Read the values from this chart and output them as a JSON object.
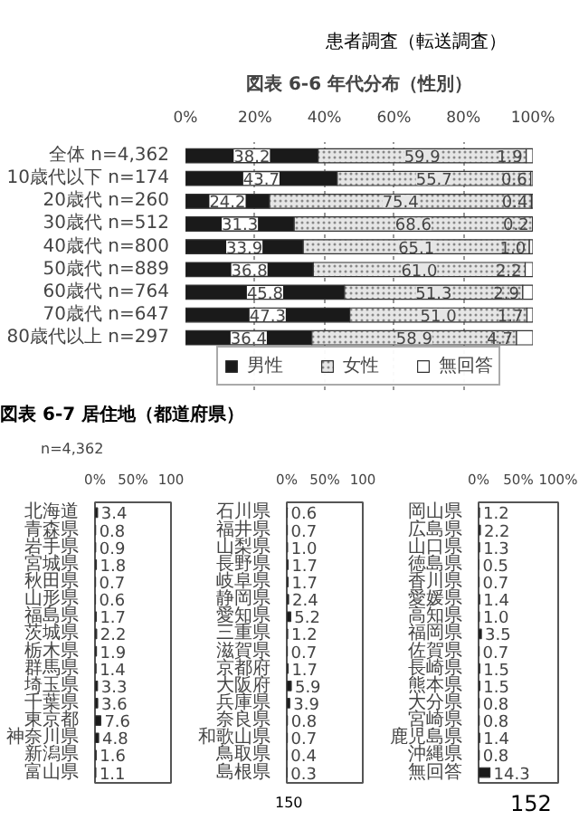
{
  "chart_data": [
    {
      "type": "bar",
      "orientation": "horizontal",
      "stacked": true,
      "title": "図表 6-6 年代分布（性別）",
      "annotations": [
        "患者調査（転送調査）"
      ],
      "categories": [
        "全体 n=4,362",
        "10歳代以下 n=174",
        "20歳代 n=260",
        "30歳代 n=512",
        "40歳代 n=800",
        "50歳代 n=889",
        "60歳代 n=764",
        "70歳代 n=647",
        "80歳代以上 n=297"
      ],
      "series": [
        {
          "name": "男性",
          "color": "#1a1a1a",
          "values": [
            38.2,
            43.7,
            24.2,
            31.3,
            33.9,
            36.8,
            45.8,
            47.3,
            36.4
          ],
          "value_labels": [
            "38.2",
            "43.7",
            "24.2",
            "31.3",
            "33.9",
            "36.8",
            "45.8",
            "47.3",
            "36.4"
          ]
        },
        {
          "name": "女性",
          "color": "#e6e6e6",
          "values": [
            59.9,
            55.7,
            75.4,
            68.6,
            65.1,
            61.0,
            51.3,
            51.0,
            58.9
          ],
          "value_labels": [
            "59.9",
            "55.7",
            "75.4",
            "68.6",
            "65.1",
            "61.0",
            "51.3",
            "51.0",
            "58.9"
          ]
        },
        {
          "name": "無回答",
          "color": "#ffffff",
          "values": [
            1.9,
            0.6,
            0.4,
            0.2,
            1.0,
            2.2,
            2.9,
            1.7,
            4.7
          ],
          "value_labels": [
            "1.9",
            "0.6",
            "0.4",
            "0.2",
            "1.0",
            "2.2",
            "2.9",
            "1.7",
            "4.7"
          ]
        }
      ],
      "xlim": [
        0,
        100
      ],
      "xticks": [
        {
          "value": 0,
          "label": "0%"
        },
        {
          "value": 20,
          "label": "20%"
        },
        {
          "value": 40,
          "label": "40%"
        },
        {
          "value": 60,
          "label": "60%"
        },
        {
          "value": 80,
          "label": "80%"
        },
        {
          "value": 100,
          "label": "100%"
        }
      ],
      "grid": "x",
      "legend": "bottom"
    },
    {
      "type": "bar",
      "orientation": "horizontal",
      "title": "図表 6-7 居住地（都道府県）",
      "annotations": [
        "n=4,362"
      ],
      "categories": [
        "北海道",
        "青森県",
        "岩手県",
        "宮城県",
        "秋田県",
        "山形県",
        "福島県",
        "茨城県",
        "栃木県",
        "群馬県",
        "埼玉県",
        "千葉県",
        "東京都",
        "神奈川県",
        "新潟県",
        "富山県"
      ],
      "values": [
        3.4,
        0.8,
        0.9,
        1.8,
        0.7,
        0.6,
        1.7,
        2.2,
        1.9,
        1.4,
        3.3,
        3.6,
        7.6,
        4.8,
        1.6,
        1.1
      ],
      "color": "#1a1a1a",
      "value_labels": [
        "3.4",
        "0.8",
        "0.9",
        "1.8",
        "0.7",
        "0.6",
        "1.7",
        "2.2",
        "1.9",
        "1.4",
        "3.3",
        "3.6",
        "7.6",
        "4.8",
        "1.6",
        "1.1"
      ],
      "xlim": [
        0,
        100
      ],
      "xticks": [
        {
          "value": 0,
          "label": "0%"
        },
        {
          "value": 50,
          "label": "50%"
        },
        100
      ]
    },
    {
      "type": "bar",
      "orientation": "horizontal",
      "categories": [
        "石川県",
        "福井県",
        "山梨県",
        "長野県",
        "岐阜県",
        "静岡県",
        "愛知県",
        "三重県",
        "滋賀県",
        "京都府",
        "大阪府",
        "兵庫県",
        "奈良県",
        "和歌山県",
        "鳥取県",
        "島根県"
      ],
      "values": [
        0.6,
        0.7,
        1.0,
        1.7,
        1.7,
        2.4,
        5.2,
        1.2,
        0.7,
        1.7,
        5.9,
        3.9,
        0.8,
        0.7,
        0.4,
        0.3
      ],
      "color": "#1a1a1a",
      "value_labels": [
        "0.6",
        "0.7",
        "1.0",
        "1.7",
        "1.7",
        "2.4",
        "5.2",
        "1.2",
        "0.7",
        "1.7",
        "5.9",
        "3.9",
        "0.8",
        "0.7",
        "0.4",
        "0.3"
      ],
      "xlim": [
        0,
        100
      ],
      "xticks": [
        {
          "value": 0,
          "label": "0%"
        },
        {
          "value": 50,
          "label": "50%"
        },
        100
      ]
    },
    {
      "type": "bar",
      "orientation": "horizontal",
      "annotations": [
        "150",
        "152"
      ],
      "categories": [
        "岡山県",
        "広島県",
        "山口県",
        "徳島県",
        "香川県",
        "愛媛県",
        "高知県",
        "福岡県",
        "佐賀県",
        "長崎県",
        "熊本県",
        "大分県",
        "宮崎県",
        "鹿児島県",
        "沖縄県",
        "無回答"
      ],
      "values": [
        1.2,
        2.2,
        1.3,
        0.5,
        0.7,
        1.4,
        1.0,
        3.5,
        0.7,
        1.5,
        1.5,
        0.8,
        0.8,
        1.4,
        0.8,
        14.3
      ],
      "color": "#1a1a1a",
      "value_labels": [
        "1.2",
        "2.2",
        "1.3",
        "0.5",
        "0.7",
        "1.4",
        "1.0",
        "3.5",
        "0.7",
        "1.5",
        "1.5",
        "0.8",
        "0.8",
        "1.4",
        "0.8",
        "14.3"
      ],
      "xlim": [
        0,
        100
      ],
      "xticks": [
        {
          "value": 0,
          "label": "0%"
        },
        {
          "value": 50,
          "label": "50%"
        },
        {
          "value": 100,
          "label": "100%"
        }
      ]
    }
  ]
}
